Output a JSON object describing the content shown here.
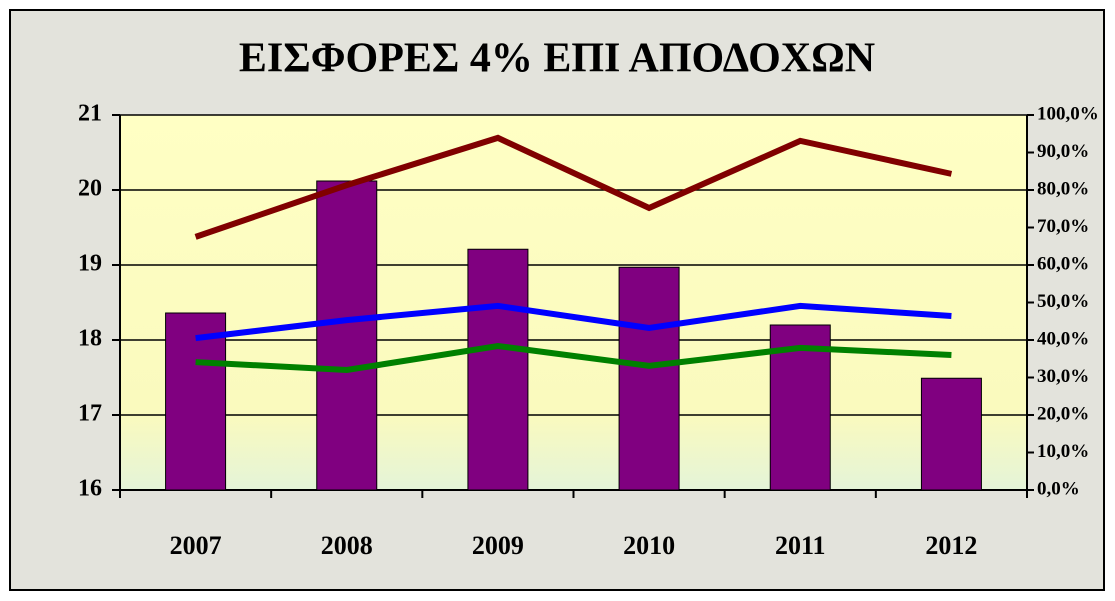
{
  "chart_data": {
    "type": "bar",
    "title": "ΕΙΣΦΟΡΕΣ 4% ΕΠΙ ΑΠΟΔΟΧΩΝ",
    "categories": [
      "2007",
      "2008",
      "2009",
      "2010",
      "2011",
      "2012"
    ],
    "series": [
      {
        "type": "bar",
        "color": "#800080",
        "values": [
          18.36,
          20.12,
          19.21,
          18.97,
          18.2,
          17.49
        ]
      },
      {
        "type": "line",
        "axis": "y2",
        "color": "#800000",
        "values": [
          67.5,
          81.3,
          93.9,
          75.2,
          93.1,
          84.3
        ]
      },
      {
        "type": "line",
        "axis": "y2",
        "color": "#0000ff",
        "values": [
          40.5,
          45.3,
          49.1,
          43.2,
          49.1,
          46.4
        ]
      },
      {
        "type": "line",
        "axis": "y2",
        "color": "#008000",
        "values": [
          34.1,
          32.0,
          38.4,
          33.1,
          37.9,
          36.0
        ]
      }
    ],
    "ylim": [
      16,
      21
    ],
    "yticks": [
      16,
      17,
      18,
      19,
      20,
      21
    ],
    "y2lim": [
      0,
      100
    ],
    "y2ticks": [
      {
        "value": 0,
        "label": "0,0%"
      },
      {
        "value": 10,
        "label": "10,0%"
      },
      {
        "value": 20,
        "label": "20,0%"
      },
      {
        "value": 30,
        "label": "30,0%"
      },
      {
        "value": 40,
        "label": "40,0%"
      },
      {
        "value": 50,
        "label": "50,0%"
      },
      {
        "value": 60,
        "label": "60,0%"
      },
      {
        "value": 70,
        "label": "70,0%"
      },
      {
        "value": 80,
        "label": "80,0%"
      },
      {
        "value": 90,
        "label": "90,0%"
      },
      {
        "value": 100,
        "label": "100,0%"
      }
    ],
    "grid": true
  }
}
